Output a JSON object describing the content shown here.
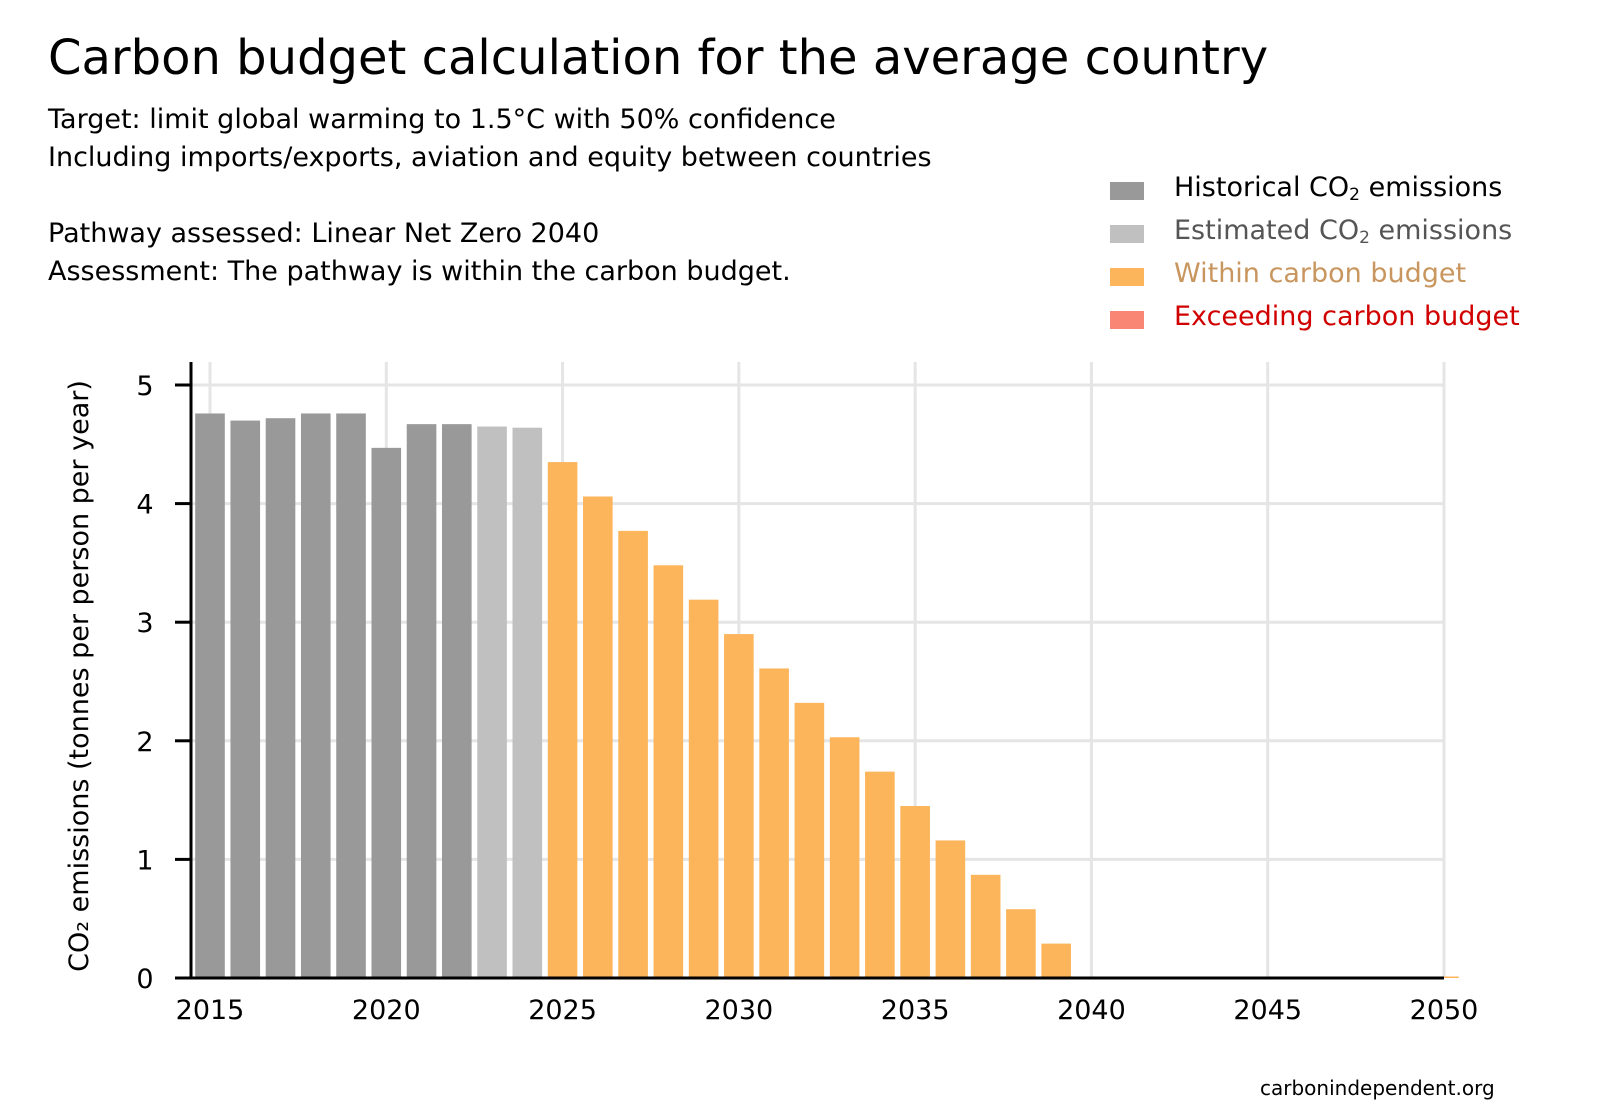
{
  "header": {
    "title": "Carbon budget calculation for the average country",
    "subtitle_lines": [
      "Target: limit global warming to 1.5°C with 50% confidence",
      "Including imports/exports, aviation and equity between countries",
      "Pathway assessed: Linear Net Zero 2040",
      "Assessment: The pathway is within the carbon budget."
    ]
  },
  "legend": {
    "items": [
      {
        "pre": "Historical CO",
        "sub": "2",
        "post": " emissions",
        "color": "#999999",
        "text_color": "#000000"
      },
      {
        "pre": "Estimated CO",
        "sub": "2",
        "post": " emissions",
        "color": "#c0c0c0",
        "text_color": "#555555"
      },
      {
        "pre": "Within carbon budget",
        "sub": "",
        "post": "",
        "color": "#fdb55c",
        "text_color": "#c8965e"
      },
      {
        "pre": "Exceeding carbon budget",
        "sub": "",
        "post": "",
        "color": "#f98575",
        "text_color": "#d10000"
      }
    ]
  },
  "chart_data": {
    "type": "bar",
    "ylabel": "CO₂ emissions (tonnes per person per year)",
    "xlim": [
      2015,
      2050
    ],
    "ylim": [
      0,
      5
    ],
    "xticks": [
      2015,
      2020,
      2025,
      2030,
      2035,
      2040,
      2045,
      2050
    ],
    "yticks": [
      0,
      1,
      2,
      3,
      4,
      5
    ],
    "grid": true,
    "legend_position": "top-right",
    "series": [
      {
        "name": "Historical CO2 emissions",
        "color": "#999999",
        "x": [
          2015,
          2016,
          2017,
          2018,
          2019,
          2020,
          2021,
          2022
        ],
        "values": [
          4.76,
          4.7,
          4.72,
          4.76,
          4.76,
          4.47,
          4.67,
          4.67
        ]
      },
      {
        "name": "Estimated CO2 emissions",
        "color": "#c0c0c0",
        "x": [
          2023,
          2024
        ],
        "values": [
          4.65,
          4.64
        ]
      },
      {
        "name": "Within carbon budget",
        "color": "#fdb55c",
        "x": [
          2025,
          2026,
          2027,
          2028,
          2029,
          2030,
          2031,
          2032,
          2033,
          2034,
          2035,
          2036,
          2037,
          2038,
          2039,
          2040,
          2041,
          2042,
          2043,
          2044,
          2045,
          2046,
          2047,
          2048,
          2049,
          2050
        ],
        "values": [
          4.35,
          4.06,
          3.77,
          3.48,
          3.19,
          2.9,
          2.61,
          2.32,
          2.03,
          1.74,
          1.45,
          1.16,
          0.87,
          0.58,
          0.29,
          0,
          0,
          0,
          0,
          0,
          0,
          0,
          0,
          0,
          0,
          0
        ]
      },
      {
        "name": "Exceeding carbon budget",
        "color": "#f98575",
        "x": [],
        "values": []
      }
    ]
  },
  "footer": {
    "source": "carbonindependent.org"
  }
}
